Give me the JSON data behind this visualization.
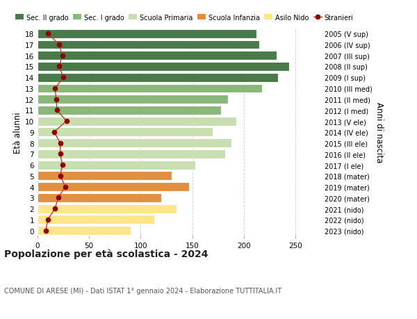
{
  "ages": [
    0,
    1,
    2,
    3,
    4,
    5,
    6,
    7,
    8,
    9,
    10,
    11,
    12,
    13,
    14,
    15,
    16,
    17,
    18
  ],
  "bar_values": [
    90,
    113,
    135,
    120,
    147,
    130,
    153,
    182,
    188,
    170,
    193,
    178,
    185,
    218,
    233,
    244,
    232,
    215,
    212
  ],
  "stranieri": [
    8,
    10,
    17,
    20,
    27,
    22,
    24,
    22,
    22,
    16,
    28,
    19,
    18,
    17,
    25,
    21,
    24,
    21,
    10
  ],
  "right_labels": [
    "2023 (nido)",
    "2022 (nido)",
    "2021 (nido)",
    "2020 (mater)",
    "2019 (mater)",
    "2018 (mater)",
    "2017 (I ele)",
    "2016 (II ele)",
    "2015 (III ele)",
    "2014 (IV ele)",
    "2013 (V ele)",
    "2012 (I med)",
    "2011 (II med)",
    "2010 (III med)",
    "2009 (I sup)",
    "2008 (II sup)",
    "2007 (III sup)",
    "2006 (IV sup)",
    "2005 (V sup)"
  ],
  "bar_colors": [
    "#fde68a",
    "#fde68a",
    "#fde68a",
    "#e09040",
    "#e09040",
    "#e09040",
    "#c8ddb0",
    "#c8ddb0",
    "#c8ddb0",
    "#c8ddb0",
    "#c8ddb0",
    "#8ab87a",
    "#8ab87a",
    "#8ab87a",
    "#4a7a4a",
    "#4a7a4a",
    "#4a7a4a",
    "#4a7a4a",
    "#4a7a4a"
  ],
  "legend_labels": [
    "Sec. II grado",
    "Sec. I grado",
    "Scuola Primaria",
    "Scuola Infanzia",
    "Asilo Nido",
    "Stranieri"
  ],
  "legend_colors": [
    "#4a7a4a",
    "#8ab87a",
    "#c8ddb0",
    "#e09040",
    "#fde68a",
    "#8b0000"
  ],
  "title": "Popolazione per età scolastica - 2024",
  "subtitle": "COMUNE DI ARESE (MI) - Dati ISTAT 1° gennaio 2024 - Elaborazione TUTTITALIA.IT",
  "ylabel_left": "Età alunni",
  "ylabel_right": "Anni di nascita",
  "xlim": [
    0,
    275
  ],
  "xticks": [
    0,
    50,
    100,
    150,
    200,
    250
  ],
  "stranieri_color": "#8b0000",
  "stranieri_line_color": "#c0392b",
  "bg_color": "#ffffff",
  "grid_color": "#cccccc"
}
